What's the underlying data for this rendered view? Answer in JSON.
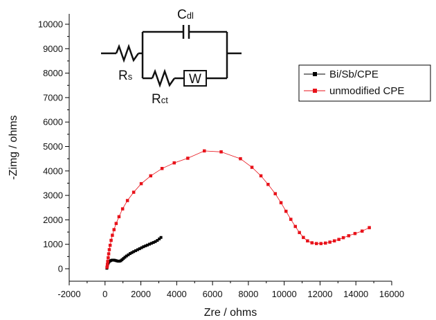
{
  "chart_data": {
    "type": "scatter",
    "xlabel": "Zre / ohms",
    "ylabel": "-Zimg / ohms",
    "xlim": [
      -2000,
      16000
    ],
    "ylim": [
      -500,
      10000
    ],
    "x_ticks": [
      -2000,
      0,
      2000,
      4000,
      6000,
      8000,
      10000,
      12000,
      14000,
      16000
    ],
    "y_ticks": [
      0,
      1000,
      2000,
      3000,
      4000,
      5000,
      6000,
      7000,
      8000,
      9000,
      10000
    ],
    "grid": false,
    "legend_position": "right",
    "series": [
      {
        "name": "Bi/Sb/CPE",
        "color": "#000000",
        "marker": "square",
        "points": [
          [
            100,
            20
          ],
          [
            120,
            80
          ],
          [
            140,
            150
          ],
          [
            170,
            220
          ],
          [
            210,
            270
          ],
          [
            260,
            310
          ],
          [
            320,
            335
          ],
          [
            390,
            350
          ],
          [
            460,
            355
          ],
          [
            530,
            348
          ],
          [
            600,
            335
          ],
          [
            670,
            320
          ],
          [
            740,
            310
          ],
          [
            810,
            310
          ],
          [
            880,
            330
          ],
          [
            950,
            370
          ],
          [
            1030,
            420
          ],
          [
            1110,
            470
          ],
          [
            1200,
            520
          ],
          [
            1300,
            570
          ],
          [
            1400,
            620
          ],
          [
            1500,
            660
          ],
          [
            1600,
            700
          ],
          [
            1710,
            740
          ],
          [
            1820,
            780
          ],
          [
            1930,
            820
          ],
          [
            2040,
            860
          ],
          [
            2150,
            900
          ],
          [
            2260,
            935
          ],
          [
            2370,
            970
          ],
          [
            2480,
            1005
          ],
          [
            2590,
            1040
          ],
          [
            2700,
            1075
          ],
          [
            2810,
            1110
          ],
          [
            2920,
            1160
          ],
          [
            3030,
            1220
          ],
          [
            3120,
            1280
          ]
        ]
      },
      {
        "name": "unmodified CPE",
        "color": "#e8121a",
        "marker": "square",
        "points": [
          [
            110,
            60
          ],
          [
            130,
            170
          ],
          [
            150,
            300
          ],
          [
            175,
            450
          ],
          [
            205,
            610
          ],
          [
            240,
            780
          ],
          [
            285,
            960
          ],
          [
            340,
            1160
          ],
          [
            410,
            1370
          ],
          [
            500,
            1600
          ],
          [
            620,
            1850
          ],
          [
            780,
            2130
          ],
          [
            980,
            2450
          ],
          [
            1250,
            2790
          ],
          [
            1600,
            3130
          ],
          [
            2020,
            3480
          ],
          [
            2550,
            3800
          ],
          [
            3180,
            4100
          ],
          [
            3860,
            4330
          ],
          [
            4620,
            4520
          ],
          [
            5540,
            4820
          ],
          [
            6480,
            4780
          ],
          [
            7560,
            4500
          ],
          [
            8200,
            4150
          ],
          [
            8700,
            3800
          ],
          [
            9100,
            3450
          ],
          [
            9500,
            3070
          ],
          [
            9820,
            2700
          ],
          [
            10100,
            2350
          ],
          [
            10370,
            2020
          ],
          [
            10620,
            1730
          ],
          [
            10850,
            1480
          ],
          [
            11070,
            1280
          ],
          [
            11300,
            1140
          ],
          [
            11550,
            1060
          ],
          [
            11800,
            1030
          ],
          [
            12050,
            1030
          ],
          [
            12300,
            1050
          ],
          [
            12550,
            1090
          ],
          [
            12800,
            1140
          ],
          [
            13050,
            1200
          ],
          [
            13300,
            1270
          ],
          [
            13600,
            1350
          ],
          [
            13950,
            1440
          ],
          [
            14350,
            1540
          ],
          [
            14750,
            1680
          ]
        ]
      }
    ]
  },
  "circuit": {
    "labels": {
      "cap_main": "C",
      "cap_sub": "dl",
      "rs_main": "R",
      "rs_sub": "s",
      "rct_main": "R",
      "rct_sub": "ct",
      "w": "W"
    }
  }
}
